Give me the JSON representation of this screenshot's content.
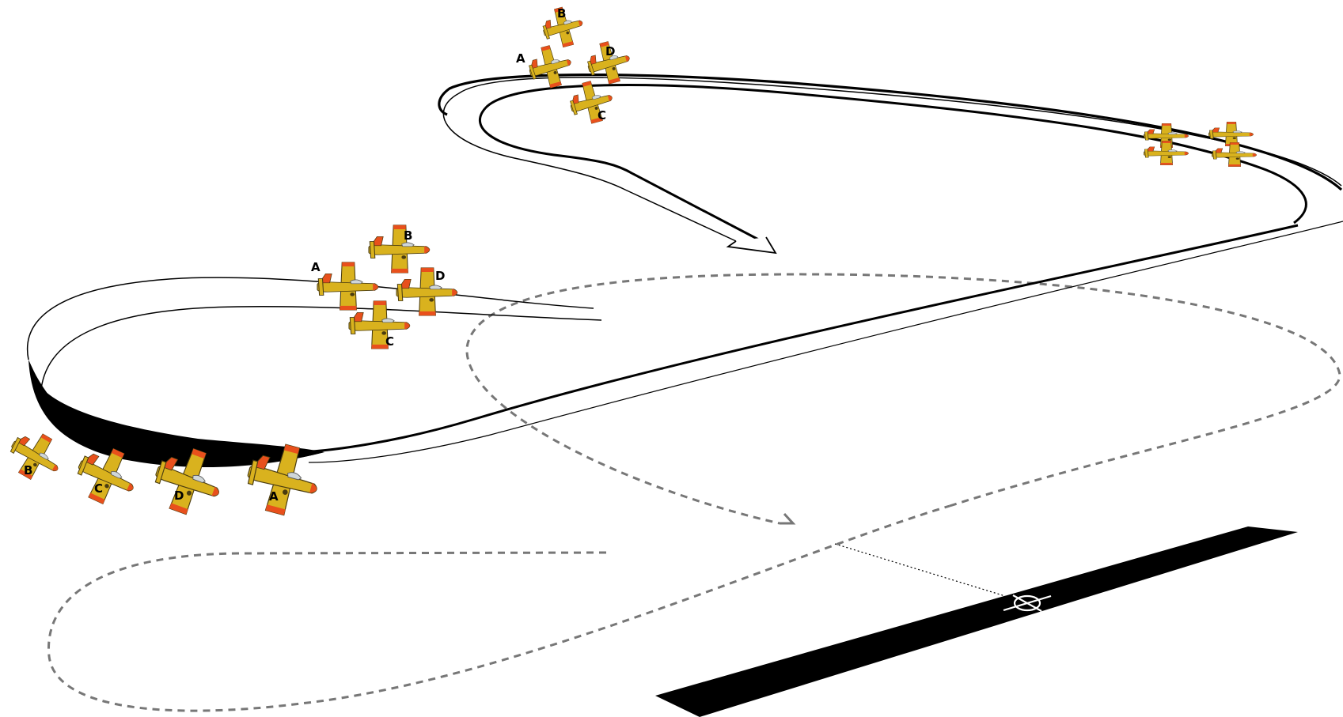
{
  "colors": {
    "aircraft_body": "#d9b21e",
    "aircraft_accent": "#e8501c",
    "aircraft_dark": "#4a3c10",
    "path_line": "#000000",
    "dashed_path": "#777777",
    "runway": "#000000",
    "background": "#ffffff"
  },
  "icons": {
    "aircraft": "aircraft-icon",
    "touchdown_marker": "crosshair-icon",
    "direction_arrow": "arrow-icon"
  },
  "formations": {
    "top_diamond": {
      "labels": [
        "B",
        "A",
        "D",
        "C"
      ]
    },
    "mid_diamond": {
      "labels": [
        "B",
        "A",
        "D",
        "C"
      ]
    },
    "right_box": {
      "labels": []
    },
    "line_abreast": {
      "labels": [
        "B",
        "C",
        "D",
        "A"
      ]
    }
  }
}
